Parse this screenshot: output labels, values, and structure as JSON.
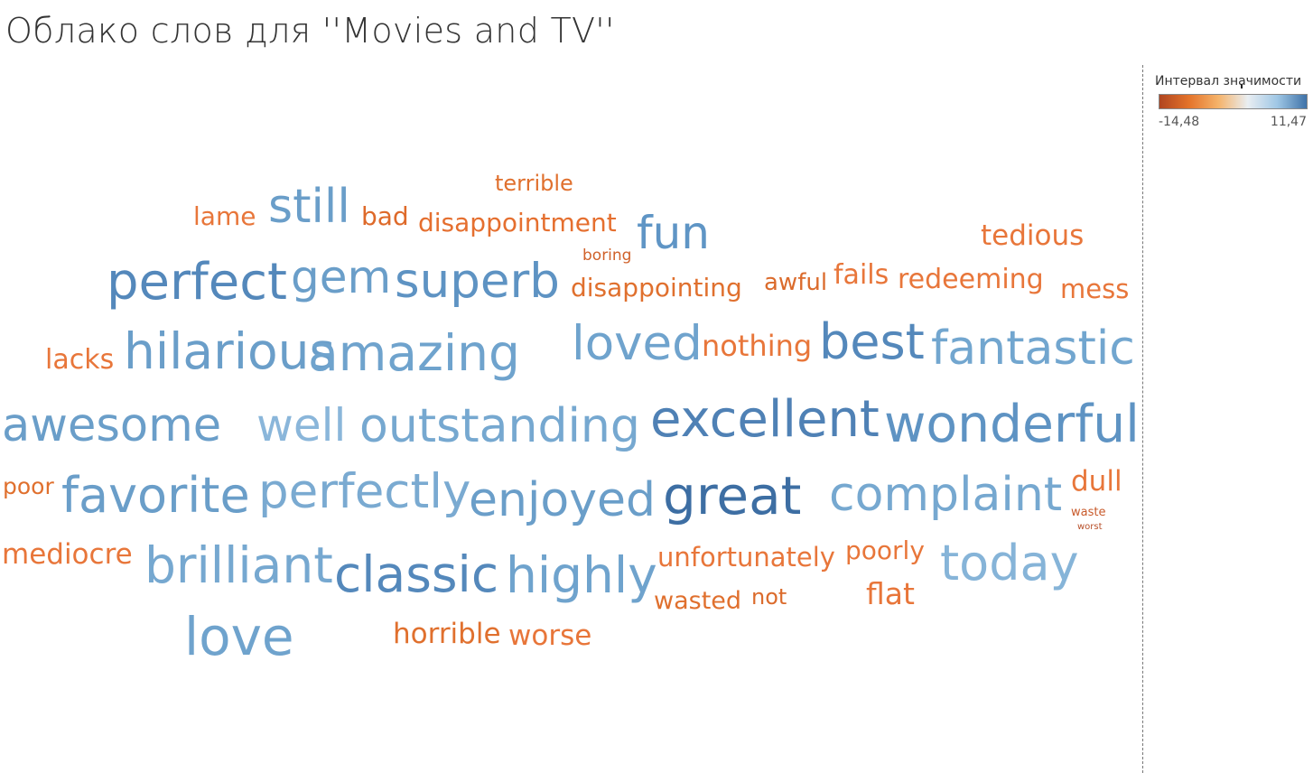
{
  "chart_data": {
    "type": "wordcloud",
    "title": "Облако слов для ''Movies and TV''",
    "color_legend": {
      "title": "Интервал значимости",
      "min_label": "-14,48",
      "max_label": "11,47",
      "min": -14.48,
      "max": 11.47,
      "placement": "top-right",
      "colors": [
        "#b04520",
        "#e4732a",
        "#f5b36a",
        "#e9eef2",
        "#9fc7e5",
        "#3f72a8"
      ]
    },
    "words": [
      {
        "text": "terrible",
        "size": 2,
        "color": "#e0702e"
      },
      {
        "text": "lame",
        "size": 3,
        "color": "#e8763a"
      },
      {
        "text": "still",
        "size": 5,
        "color": "#6a9ec9"
      },
      {
        "text": "bad",
        "size": 3,
        "color": "#de6a2a"
      },
      {
        "text": "disappointment",
        "size": 3,
        "color": "#e56f2f"
      },
      {
        "text": "fun",
        "size": 5,
        "color": "#5f95c5"
      },
      {
        "text": "tedious",
        "size": 3,
        "color": "#e8763a"
      },
      {
        "text": "boring",
        "size": 1,
        "color": "#d0612a"
      },
      {
        "text": "perfect",
        "size": 6,
        "color": "#5488bb"
      },
      {
        "text": "gem",
        "size": 5,
        "color": "#6a9ec9"
      },
      {
        "text": "superb",
        "size": 6,
        "color": "#5e93c3"
      },
      {
        "text": "disappointing",
        "size": 3,
        "color": "#e0702e"
      },
      {
        "text": "awful",
        "size": 3,
        "color": "#db6b2c"
      },
      {
        "text": "fails",
        "size": 3,
        "color": "#e8763a"
      },
      {
        "text": "redeeming",
        "size": 3,
        "color": "#e8763a"
      },
      {
        "text": "mess",
        "size": 3,
        "color": "#e8763a"
      },
      {
        "text": "lacks",
        "size": 3,
        "color": "#e8763a"
      },
      {
        "text": "hilarious",
        "size": 6,
        "color": "#6a9ec9"
      },
      {
        "text": "amazing",
        "size": 6,
        "color": "#6fa3cd"
      },
      {
        "text": "loved",
        "size": 6,
        "color": "#6fa3cd"
      },
      {
        "text": "nothing",
        "size": 3,
        "color": "#e8763a"
      },
      {
        "text": "best",
        "size": 6,
        "color": "#5488bb"
      },
      {
        "text": "fantastic",
        "size": 6,
        "color": "#72a6cf"
      },
      {
        "text": "awesome",
        "size": 6,
        "color": "#6a9ec9"
      },
      {
        "text": "well",
        "size": 6,
        "color": "#8ab6da"
      },
      {
        "text": "outstanding",
        "size": 6,
        "color": "#76a8d0"
      },
      {
        "text": "excellent",
        "size": 7,
        "color": "#4f81b5"
      },
      {
        "text": "wonderful",
        "size": 7,
        "color": "#5e93c3"
      },
      {
        "text": "poor",
        "size": 2,
        "color": "#e0702e"
      },
      {
        "text": "favorite",
        "size": 6,
        "color": "#6a9ec9"
      },
      {
        "text": "perfectly",
        "size": 6,
        "color": "#7aaad1"
      },
      {
        "text": "enjoyed",
        "size": 6,
        "color": "#6a9ec9"
      },
      {
        "text": "great",
        "size": 7,
        "color": "#3d6ea3"
      },
      {
        "text": "complaint",
        "size": 6,
        "color": "#76a8d0"
      },
      {
        "text": "dull",
        "size": 3,
        "color": "#e8763a"
      },
      {
        "text": "waste",
        "size": 1,
        "color": "#c85a2b"
      },
      {
        "text": "worst",
        "size": 1,
        "color": "#b8502a"
      },
      {
        "text": "mediocre",
        "size": 3,
        "color": "#e8763a"
      },
      {
        "text": "brilliant",
        "size": 6,
        "color": "#76a8d0"
      },
      {
        "text": "classic",
        "size": 6,
        "color": "#5488bb"
      },
      {
        "text": "highly",
        "size": 6,
        "color": "#6fa3cd"
      },
      {
        "text": "unfortunately",
        "size": 3,
        "color": "#e8763a"
      },
      {
        "text": "poorly",
        "size": 3,
        "color": "#e8763a"
      },
      {
        "text": "today",
        "size": 6,
        "color": "#86b4d8"
      },
      {
        "text": "wasted",
        "size": 3,
        "color": "#e0702e"
      },
      {
        "text": "not",
        "size": 2,
        "color": "#db6b2c"
      },
      {
        "text": "flat",
        "size": 3,
        "color": "#e8763a"
      },
      {
        "text": "love",
        "size": 6,
        "color": "#6fa3cd"
      },
      {
        "text": "horrible",
        "size": 3,
        "color": "#e0702e"
      },
      {
        "text": "worse",
        "size": 3,
        "color": "#e8763a"
      }
    ]
  }
}
